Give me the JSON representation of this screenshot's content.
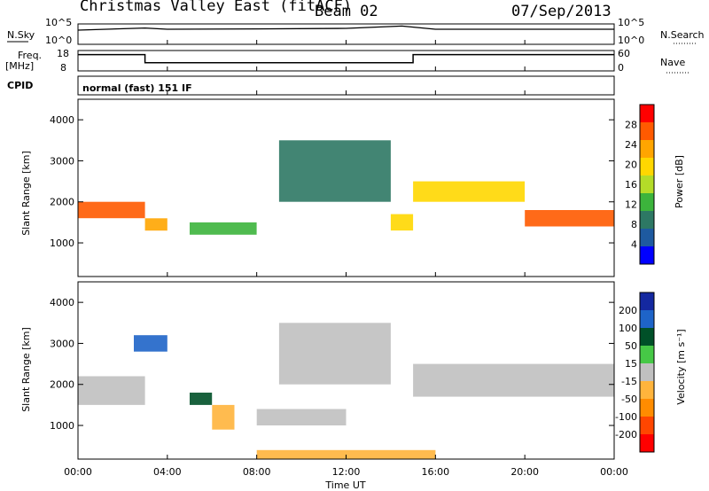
{
  "header": {
    "title": "Christmas Valley East (fitACF)",
    "beam": "Beam 02",
    "date": "07/Sep/2013"
  },
  "top_panels": {
    "nsky_label": "N.Sky",
    "nsearch_label": "N.Search",
    "nsky_ticks": [
      "10^5",
      "10^0"
    ],
    "nsearch_ticks": [
      "10^5",
      "10^0"
    ],
    "freq_label_line1": "Freq.",
    "freq_label_line2": "[MHz]",
    "freq_ticks": [
      "18",
      "8"
    ],
    "nave_label": "Nave",
    "nave_ticks": [
      "60",
      "0"
    ],
    "cpid_label": "CPID",
    "cpid_value": "normal (fast) 151 IF"
  },
  "power_panel": {
    "ylabel": "Slant Range [km]",
    "colorbar_label": "Power [dB]",
    "colorbar_ticks": [
      "28",
      "24",
      "20",
      "16",
      "12",
      "8",
      "4"
    ],
    "colorbar_colors": [
      "#ff0000",
      "#ff5a00",
      "#ffa500",
      "#ffd700",
      "#b4dc28",
      "#3cb43c",
      "#2d7864",
      "#1e5aa0",
      "#0000ff"
    ]
  },
  "velocity_panel": {
    "ylabel": "Slant Range [km]",
    "colorbar_label": "Velocity [m s⁻¹]",
    "colorbar_ticks": [
      "200",
      "100",
      "50",
      "15",
      "-15",
      "-50",
      "-100",
      "-200"
    ],
    "colorbar_colors": [
      "#1428a0",
      "#1e64c8",
      "#005028",
      "#46c846",
      "#c0c0c0",
      "#ffb43c",
      "#ff8c00",
      "#ff4600",
      "#ff0000"
    ]
  },
  "xaxis": {
    "label": "Time UT",
    "ticks": [
      "00:00",
      "04:00",
      "08:00",
      "12:00",
      "16:00",
      "20:00",
      "00:00"
    ]
  },
  "chart_data": [
    {
      "type": "line",
      "title": "",
      "ylabel": "N.Sky",
      "xlabel": "",
      "note": "Sky noise time series (approx., log scale)",
      "x": [
        "00:00",
        "03:00",
        "04:00",
        "08:00",
        "12:00",
        "14:30",
        "16:00",
        "20:00",
        "24:00"
      ],
      "series": [
        {
          "name": "N.Sky",
          "values": [
            3000,
            10000,
            5000,
            6000,
            8000,
            30000,
            5000,
            5000,
            5000
          ]
        }
      ],
      "ylim": [
        1,
        100000
      ],
      "yscale": "log"
    },
    {
      "type": "line",
      "title": "",
      "ylabel": "Freq. [MHz]",
      "xlabel": "",
      "x": [
        "00:00",
        "03:00",
        "03:00",
        "15:00",
        "15:00",
        "24:00"
      ],
      "series": [
        {
          "name": "Freq.",
          "values": [
            16,
            16,
            12,
            12,
            16,
            16
          ]
        }
      ],
      "ylim": [
        8,
        18
      ]
    },
    {
      "type": "heatmap",
      "title": "",
      "xlabel": "Time UT",
      "ylabel": "Slant Range [km]",
      "colorbar_label": "Power [dB]",
      "xlim": [
        0,
        24
      ],
      "ylim": [
        180,
        4500
      ],
      "clim": [
        0,
        30
      ],
      "features": [
        {
          "time": [
            0,
            3
          ],
          "range_km": [
            1600,
            2000
          ],
          "power_db": 26
        },
        {
          "time": [
            3,
            4
          ],
          "range_km": [
            1300,
            1600
          ],
          "power_db": 24
        },
        {
          "time": [
            5,
            8
          ],
          "range_km": [
            1200,
            1500
          ],
          "power_db": 10
        },
        {
          "time": [
            9,
            14
          ],
          "range_km": [
            2000,
            3500
          ],
          "power_db": 6
        },
        {
          "time": [
            14,
            15
          ],
          "range_km": [
            1300,
            1700
          ],
          "power_db": 20
        },
        {
          "time": [
            15,
            20
          ],
          "range_km": [
            2000,
            2500
          ],
          "power_db": 20
        },
        {
          "time": [
            20,
            24
          ],
          "range_km": [
            1400,
            1800
          ],
          "power_db": 26
        }
      ]
    },
    {
      "type": "heatmap",
      "title": "",
      "xlabel": "Time UT",
      "ylabel": "Slant Range [km]",
      "colorbar_label": "Velocity [m s⁻¹]",
      "xlim": [
        0,
        24
      ],
      "ylim": [
        180,
        4500
      ],
      "clim": [
        -200,
        200
      ],
      "features": [
        {
          "time": [
            0,
            3
          ],
          "range_km": [
            1500,
            2200
          ],
          "velocity": 0
        },
        {
          "time": [
            2.5,
            4
          ],
          "range_km": [
            2800,
            3200
          ],
          "velocity": 150
        },
        {
          "time": [
            5,
            6
          ],
          "range_km": [
            1500,
            1800
          ],
          "velocity": 120
        },
        {
          "time": [
            6,
            7
          ],
          "range_km": [
            900,
            1500
          ],
          "velocity": -40
        },
        {
          "time": [
            8,
            12
          ],
          "range_km": [
            1000,
            1400
          ],
          "velocity": 0
        },
        {
          "time": [
            9,
            14
          ],
          "range_km": [
            2000,
            3500
          ],
          "velocity": 20
        },
        {
          "time": [
            15,
            24
          ],
          "range_km": [
            1700,
            2500
          ],
          "velocity": 0
        },
        {
          "time": [
            8,
            16
          ],
          "range_km": [
            180,
            400
          ],
          "velocity": -60
        }
      ]
    }
  ]
}
